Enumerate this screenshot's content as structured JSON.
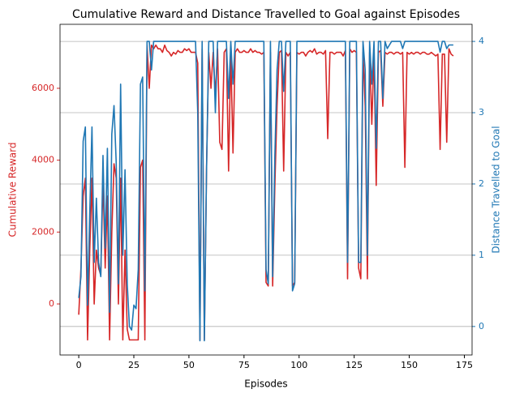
{
  "chart_data": {
    "type": "line",
    "title": "Cumulative Reward and Distance Travelled to Goal against Episodes",
    "x_label": "Episodes",
    "y_label": "Cumulative Reward",
    "y2_label": "Distance Travelled to Goal",
    "x": [
      0,
      1,
      2,
      3,
      4,
      5,
      6,
      7,
      8,
      9,
      10,
      11,
      12,
      13,
      14,
      15,
      16,
      17,
      18,
      19,
      20,
      21,
      22,
      23,
      24,
      25,
      26,
      27,
      28,
      29,
      30,
      31,
      32,
      33,
      34,
      35,
      36,
      37,
      38,
      39,
      40,
      41,
      42,
      43,
      44,
      45,
      46,
      47,
      48,
      49,
      50,
      51,
      52,
      53,
      54,
      55,
      56,
      57,
      58,
      59,
      60,
      61,
      62,
      63,
      64,
      65,
      66,
      67,
      68,
      69,
      70,
      71,
      72,
      73,
      74,
      75,
      76,
      77,
      78,
      79,
      80,
      81,
      82,
      83,
      84,
      85,
      86,
      87,
      88,
      89,
      90,
      91,
      92,
      93,
      94,
      95,
      96,
      97,
      98,
      99,
      100,
      101,
      102,
      103,
      104,
      105,
      106,
      107,
      108,
      109,
      110,
      111,
      112,
      113,
      114,
      115,
      116,
      117,
      118,
      119,
      120,
      121,
      122,
      123,
      124,
      125,
      126,
      127,
      128,
      129,
      130,
      131,
      132,
      133,
      134,
      135,
      136,
      137,
      138,
      139,
      140,
      141,
      142,
      143,
      144,
      145,
      146,
      147,
      148,
      149,
      150,
      151,
      152,
      153,
      154,
      155,
      156,
      157,
      158,
      159,
      160,
      161,
      162,
      163,
      164,
      165,
      166,
      167,
      168,
      169,
      170
    ],
    "series": [
      {
        "name": "Cumulative Reward",
        "color": "#d62728",
        "axis": "y",
        "values": [
          -300,
          1000,
          3000,
          3500,
          -1000,
          1500,
          3500,
          0,
          1500,
          1000,
          800,
          3500,
          1000,
          3000,
          -1000,
          2000,
          3900,
          3500,
          0,
          3500,
          -1000,
          1500,
          -700,
          -1000,
          -1000,
          -1000,
          -1000,
          -1000,
          3800,
          4000,
          -1000,
          7200,
          6000,
          7200,
          7100,
          7200,
          7100,
          7100,
          7000,
          7200,
          7050,
          7000,
          6900,
          7000,
          6950,
          7050,
          7000,
          7000,
          7100,
          7050,
          7100,
          7000,
          7000,
          7000,
          6700,
          -1000,
          7100,
          -1000,
          3800,
          7000,
          6000,
          7000,
          5800,
          7100,
          4500,
          4300,
          7000,
          7100,
          3700,
          7000,
          4200,
          7000,
          7100,
          7000,
          7000,
          7050,
          7000,
          7000,
          7100,
          7000,
          7050,
          7000,
          7000,
          6950,
          7000,
          600,
          500,
          7000,
          500,
          3300,
          5500,
          7000,
          7050,
          3700,
          7000,
          6900,
          7000,
          500,
          600,
          7000,
          6950,
          7000,
          7000,
          6900,
          7000,
          7050,
          7000,
          7100,
          6950,
          7000,
          7000,
          6950,
          7050,
          4600,
          7000,
          7000,
          6950,
          7000,
          7000,
          7000,
          6900,
          7050,
          700,
          7100,
          7000,
          7050,
          7000,
          1000,
          700,
          7000,
          5500,
          700,
          7000,
          5000,
          7000,
          3300,
          7000,
          7050,
          5500,
          7000,
          6950,
          7000,
          7000,
          6950,
          7000,
          7000,
          6950,
          7000,
          3800,
          7000,
          6950,
          7000,
          6950,
          7000,
          7000,
          6950,
          7000,
          7000,
          6950,
          6950,
          7000,
          6950,
          6900,
          6950,
          4300,
          6950,
          6950,
          4500,
          7100,
          6950,
          6900
        ]
      },
      {
        "name": "Distance Travelled to Goal",
        "color": "#1f77b4",
        "axis": "y2",
        "values": [
          0.4,
          0.7,
          2.6,
          2.8,
          0.3,
          1.6,
          2.8,
          0.9,
          1.8,
          0.9,
          0.7,
          2.4,
          1.1,
          2.5,
          0.2,
          2.7,
          3.1,
          2.3,
          0.6,
          3.4,
          1.0,
          2.2,
          0.6,
          0.0,
          -0.05,
          0.3,
          0.25,
          0.8,
          3.4,
          3.5,
          0.5,
          4.0,
          4.0,
          3.6,
          4.0,
          4.0,
          4.0,
          4.0,
          4.0,
          4.0,
          4.0,
          4.0,
          4.0,
          4.0,
          4.0,
          4.0,
          4.0,
          4.0,
          4.0,
          4.0,
          4.0,
          4.0,
          4.0,
          4.0,
          3.0,
          -0.2,
          4.0,
          -0.2,
          2.2,
          4.0,
          4.0,
          4.0,
          3.0,
          4.0,
          4.0,
          4.0,
          4.0,
          4.0,
          3.2,
          4.0,
          3.4,
          4.0,
          4.0,
          4.0,
          4.0,
          4.0,
          4.0,
          4.0,
          4.0,
          4.0,
          4.0,
          4.0,
          4.0,
          4.0,
          4.0,
          0.8,
          0.6,
          4.0,
          0.7,
          2.4,
          3.6,
          4.0,
          4.0,
          3.3,
          4.0,
          4.0,
          4.0,
          0.5,
          0.6,
          4.0,
          4.0,
          4.0,
          4.0,
          4.0,
          4.0,
          4.0,
          4.0,
          4.0,
          4.0,
          4.0,
          4.0,
          4.0,
          4.0,
          4.0,
          4.0,
          4.0,
          4.0,
          4.0,
          4.0,
          4.0,
          4.0,
          4.0,
          0.9,
          4.0,
          4.0,
          4.0,
          4.0,
          0.9,
          0.9,
          4.0,
          3.6,
          1.0,
          4.0,
          3.4,
          4.0,
          2.5,
          4.0,
          4.0,
          3.2,
          4.0,
          3.9,
          3.95,
          4.0,
          4.0,
          4.0,
          4.0,
          4.0,
          3.9,
          4.0,
          4.0,
          4.0,
          4.0,
          4.0,
          4.0,
          4.0,
          4.0,
          4.0,
          4.0,
          4.0,
          4.0,
          4.0,
          4.0,
          4.0,
          4.0,
          3.85,
          4.0,
          4.0,
          3.9,
          3.95,
          3.95,
          3.95
        ]
      }
    ],
    "xlim": [
      -8.5,
      178.5
    ],
    "xticks": [
      0,
      25,
      50,
      75,
      100,
      125,
      150,
      175
    ],
    "ylim": [
      -1420,
      7780
    ],
    "yticks": [
      0,
      2000,
      4000,
      6000
    ],
    "y2lim": [
      -0.4,
      4.24
    ],
    "y2ticks": [
      0,
      1,
      2,
      3,
      4
    ],
    "grid": "y2"
  }
}
